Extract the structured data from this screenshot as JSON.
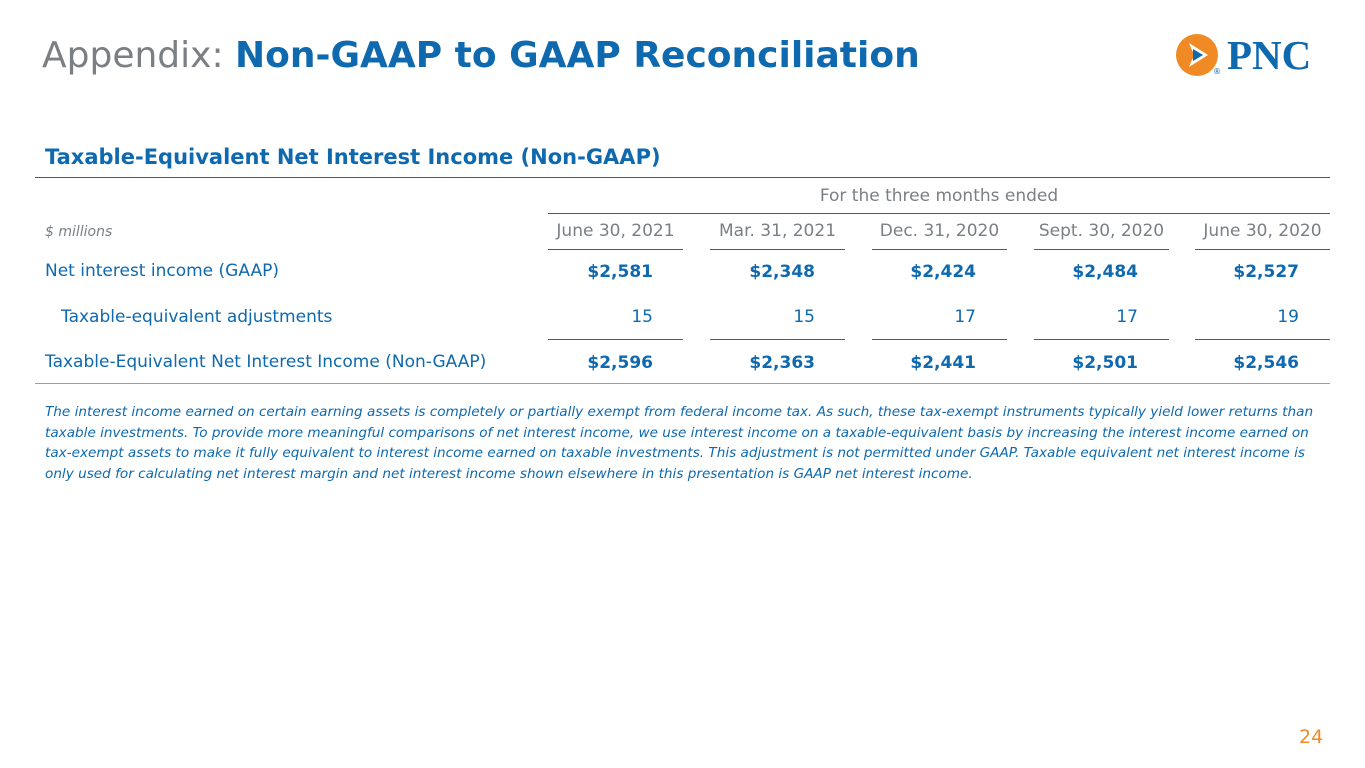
{
  "header": {
    "prefix": "Appendix: ",
    "title": "Non-GAAP to GAAP Reconciliation",
    "logo_text": "PNC",
    "logo_registered": "®",
    "brand_blue": "#0e69af",
    "brand_orange": "#f08a24",
    "gray": "#7a7f84"
  },
  "section": {
    "title": "Taxable-Equivalent Net Interest Income (Non-GAAP)"
  },
  "table": {
    "period_header": "For the three months ended",
    "units_label": "$ millions",
    "columns": [
      "June 30, 2021",
      "Mar. 31, 2021",
      "Dec. 31, 2020",
      "Sept. 30, 2020",
      "June 30, 2020"
    ],
    "rows": [
      {
        "label": "Net interest income (GAAP)",
        "values": [
          "$2,581",
          "$2,348",
          "$2,424",
          "$2,484",
          "$2,527"
        ]
      },
      {
        "label": "Taxable-equivalent adjustments",
        "values": [
          "15",
          "15",
          "17",
          "17",
          "19"
        ]
      },
      {
        "label": "Taxable-Equivalent Net Interest Income (Non-GAAP)",
        "values": [
          "$2,596",
          "$2,363",
          "$2,441",
          "$2,501",
          "$2,546"
        ]
      }
    ]
  },
  "footnote": "The interest income earned on certain earning assets is completely or partially exempt from federal income tax. As such, these tax-exempt instruments typically yield lower returns than taxable investments. To provide more meaningful comparisons of net interest income, we use interest income on a taxable-equivalent basis by increasing the interest income earned on tax-exempt assets to make it fully equivalent to interest income earned on taxable investments. This adjustment is not permitted under GAAP. Taxable equivalent net interest income is only used for calculating net interest margin and net interest income shown elsewhere in this presentation is GAAP net interest income.",
  "page_number": "24"
}
